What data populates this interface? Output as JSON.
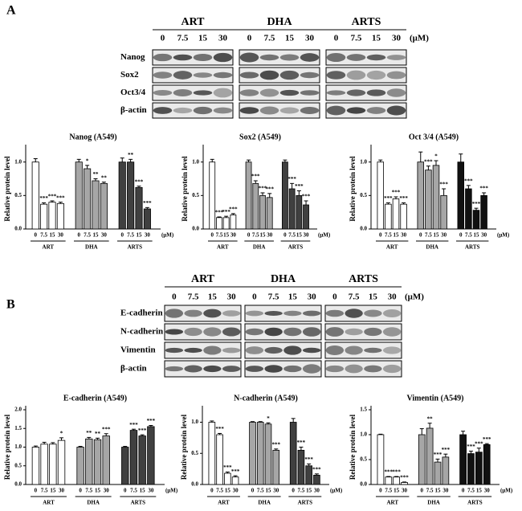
{
  "panels": [
    "A",
    "B"
  ],
  "blots": [
    {
      "drugs": [
        "ART",
        "DHA",
        "ARTS"
      ],
      "doses": [
        "0",
        "7.5",
        "15",
        "30"
      ],
      "unit": "(μM)",
      "rows": [
        "Nanog",
        "Sox2",
        "Oct3/4",
        "β-actin"
      ]
    },
    {
      "drugs": [
        "ART",
        "DHA",
        "ARTS"
      ],
      "doses": [
        "0",
        "7.5",
        "15",
        "30"
      ],
      "unit": "(μM)",
      "rows": [
        "E-cadherin",
        "N-cadherin",
        "Vimentin",
        "β-actin"
      ]
    }
  ],
  "chart_data": [
    {
      "type": "bar",
      "title": "Nanog (A549)",
      "ylabel": "Relative protein level",
      "categories": [
        "0",
        "7.5",
        "15",
        "30"
      ],
      "x_unit": "(μM)",
      "ylim": [
        0,
        1.2
      ],
      "yticks": [
        {
          "value": 0,
          "label": "0.0"
        },
        {
          "value": 0.5,
          "label": "0.5"
        },
        {
          "value": 1,
          "label": "1.0"
        }
      ],
      "series": [
        {
          "name": "ART",
          "color": "#ffffff",
          "values": [
            1.0,
            0.37,
            0.4,
            0.38
          ],
          "errors": [
            0.05,
            0.02,
            0.02,
            0.02
          ],
          "significance": [
            null,
            "***",
            "***",
            "***"
          ]
        },
        {
          "name": "DHA",
          "color": "#a6a6a6",
          "values": [
            1.0,
            0.9,
            0.72,
            0.68
          ],
          "errors": [
            0.04,
            0.05,
            0.03,
            0.02
          ],
          "significance": [
            null,
            "*",
            "**",
            "**"
          ]
        },
        {
          "name": "ARTS",
          "color": "#404040",
          "values": [
            1.0,
            1.0,
            0.62,
            0.3
          ],
          "errors": [
            0.06,
            0.04,
            0.02,
            0.02
          ],
          "significance": [
            null,
            "**",
            "***",
            "***"
          ]
        }
      ]
    },
    {
      "type": "bar",
      "title": "Sox2 (A549)",
      "ylabel": "Relative protein level",
      "categories": [
        "0",
        "7.5",
        "15",
        "30"
      ],
      "x_unit": "(μM)",
      "ylim": [
        0,
        1.2
      ],
      "yticks": [
        {
          "value": 0,
          "label": "0.0"
        },
        {
          "value": 0.5,
          "label": "0.5"
        },
        {
          "value": 1,
          "label": "1.0"
        }
      ],
      "series": [
        {
          "name": "ART",
          "color": "#ffffff",
          "values": [
            1.0,
            0.17,
            0.17,
            0.21
          ],
          "errors": [
            0.04,
            0.01,
            0.02,
            0.02
          ],
          "significance": [
            null,
            "***",
            "***",
            "***"
          ]
        },
        {
          "name": "DHA",
          "color": "#a6a6a6",
          "values": [
            1.0,
            0.68,
            0.5,
            0.47
          ],
          "errors": [
            0.03,
            0.04,
            0.04,
            0.06
          ],
          "significance": [
            null,
            "***",
            "***",
            "***"
          ]
        },
        {
          "name": "ARTS",
          "color": "#404040",
          "values": [
            1.0,
            0.6,
            0.5,
            0.36
          ],
          "errors": [
            0.03,
            0.08,
            0.07,
            0.06
          ],
          "significance": [
            null,
            "***",
            "***",
            "***"
          ]
        }
      ]
    },
    {
      "type": "bar",
      "title": "Oct 3/4 (A549)",
      "ylabel": "Relative protein level",
      "categories": [
        "0",
        "7.5",
        "15",
        "30"
      ],
      "x_unit": "(μM)",
      "ylim": [
        0,
        1.2
      ],
      "yticks": [
        {
          "value": 0,
          "label": "0.0"
        },
        {
          "value": 0.5,
          "label": "0.5"
        },
        {
          "value": 1,
          "label": "1.0"
        }
      ],
      "series": [
        {
          "name": "ART",
          "color": "#ffffff",
          "values": [
            1.0,
            0.37,
            0.45,
            0.37
          ],
          "errors": [
            0.03,
            0.02,
            0.03,
            0.02
          ],
          "significance": [
            null,
            "***",
            "***",
            "***"
          ]
        },
        {
          "name": "DHA",
          "color": "#a6a6a6",
          "values": [
            1.0,
            0.88,
            0.95,
            0.5
          ],
          "errors": [
            0.15,
            0.06,
            0.07,
            0.1
          ],
          "significance": [
            null,
            "***",
            "*",
            "***"
          ]
        },
        {
          "name": "ARTS",
          "color": "#111111",
          "values": [
            1.0,
            0.6,
            0.28,
            0.5
          ],
          "errors": [
            0.12,
            0.05,
            0.03,
            0.04
          ],
          "significance": [
            null,
            "***",
            "***",
            "***"
          ]
        }
      ]
    },
    {
      "type": "bar",
      "title": "E-cadherin (A549)",
      "ylabel": "Relative protein level",
      "categories": [
        "0",
        "7.5",
        "15",
        "30"
      ],
      "x_unit": "(μM)",
      "ylim": [
        0,
        2
      ],
      "yticks": [
        {
          "value": 0,
          "label": "0.0"
        },
        {
          "value": 0.5,
          "label": "0.5"
        },
        {
          "value": 1,
          "label": "1.0"
        },
        {
          "value": 1.5,
          "label": "1.5"
        },
        {
          "value": 2,
          "label": "2.0"
        }
      ],
      "series": [
        {
          "name": "ART",
          "color": "#ffffff",
          "values": [
            1.0,
            1.08,
            1.08,
            1.18
          ],
          "errors": [
            0.03,
            0.05,
            0.04,
            0.07
          ],
          "significance": [
            null,
            null,
            null,
            "*"
          ]
        },
        {
          "name": "DHA",
          "color": "#a6a6a6",
          "values": [
            1.0,
            1.22,
            1.2,
            1.3
          ],
          "errors": [
            0.02,
            0.04,
            0.04,
            0.06
          ],
          "significance": [
            null,
            "**",
            "**",
            "***"
          ]
        },
        {
          "name": "ARTS",
          "color": "#404040",
          "values": [
            1.0,
            1.45,
            1.3,
            1.55
          ],
          "errors": [
            0.02,
            0.03,
            0.03,
            0.03
          ],
          "significance": [
            null,
            "***",
            "***",
            "***"
          ]
        }
      ]
    },
    {
      "type": "bar",
      "title": "N-cadherin (A549)",
      "ylabel": "Relative protein level",
      "categories": [
        "0",
        "7.5",
        "15",
        "30"
      ],
      "x_unit": "(μM)",
      "ylim": [
        0,
        1.2
      ],
      "yticks": [
        {
          "value": 0,
          "label": "0.0"
        },
        {
          "value": 0.5,
          "label": "0.5"
        },
        {
          "value": 1,
          "label": "1.0"
        }
      ],
      "series": [
        {
          "name": "ART",
          "color": "#ffffff",
          "values": [
            1.0,
            0.8,
            0.18,
            0.12
          ],
          "errors": [
            0.02,
            0.02,
            0.02,
            0.02
          ],
          "significance": [
            null,
            "***",
            "***",
            "***"
          ]
        },
        {
          "name": "DHA",
          "color": "#a6a6a6",
          "values": [
            1.0,
            1.0,
            0.97,
            0.55
          ],
          "errors": [
            0.01,
            0.01,
            0.02,
            0.02
          ],
          "significance": [
            null,
            null,
            "*",
            "***"
          ]
        },
        {
          "name": "ARTS",
          "color": "#404040",
          "values": [
            1.0,
            0.55,
            0.3,
            0.15
          ],
          "errors": [
            0.06,
            0.05,
            0.03,
            0.02
          ],
          "significance": [
            null,
            "***",
            "***",
            "***"
          ]
        }
      ]
    },
    {
      "type": "bar",
      "title": "Vimentin (A549)",
      "ylabel": "Relative protein level",
      "categories": [
        "0",
        "7.5",
        "15",
        "30"
      ],
      "x_unit": "(μM)",
      "ylim": [
        0,
        1.5
      ],
      "yticks": [
        {
          "value": 0,
          "label": "0.0"
        },
        {
          "value": 0.5,
          "label": "0.5"
        },
        {
          "value": 1,
          "label": "1.0"
        },
        {
          "value": 1.5,
          "label": "1.5"
        }
      ],
      "series": [
        {
          "name": "ART",
          "color": "#ffffff",
          "values": [
            1.0,
            0.15,
            0.15,
            0.04
          ],
          "errors": [
            0.01,
            0.01,
            0.01,
            0.01
          ],
          "significance": [
            null,
            "***",
            "***",
            "***"
          ]
        },
        {
          "name": "DHA",
          "color": "#a6a6a6",
          "values": [
            1.0,
            1.13,
            0.45,
            0.55
          ],
          "errors": [
            0.12,
            0.1,
            0.06,
            0.06
          ],
          "significance": [
            null,
            "**",
            "***",
            "***"
          ]
        },
        {
          "name": "ARTS",
          "color": "#111111",
          "values": [
            1.0,
            0.62,
            0.65,
            0.8
          ],
          "errors": [
            0.07,
            0.05,
            0.08,
            0.02
          ],
          "significance": [
            null,
            "***",
            "***",
            "***"
          ]
        }
      ]
    }
  ]
}
